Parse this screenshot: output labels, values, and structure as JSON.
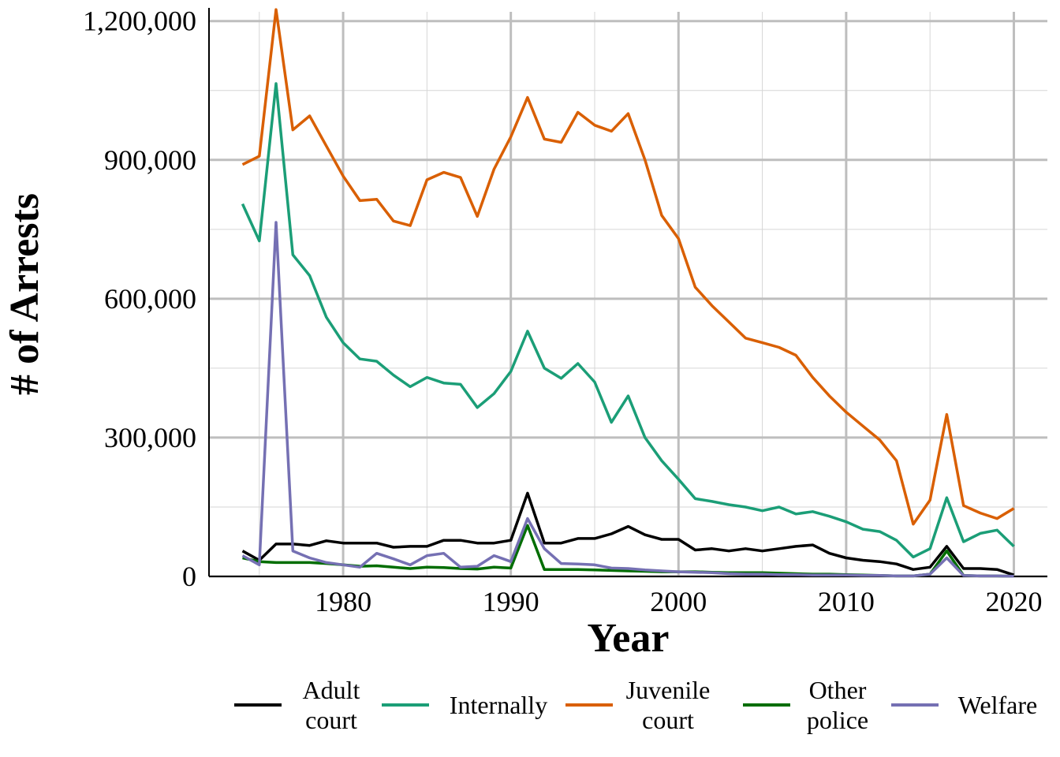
{
  "chart_data": {
    "type": "line",
    "xlabel": "Year",
    "ylabel": "# of Arrests",
    "xlim": [
      1972,
      2022
    ],
    "ylim": [
      0,
      1220000
    ],
    "x_ticks": [
      1980,
      1990,
      2000,
      2010,
      2020
    ],
    "x_tick_labels": [
      "1980",
      "1990",
      "2000",
      "2010",
      "2020"
    ],
    "y_ticks": [
      0,
      300000,
      600000,
      900000,
      1200000
    ],
    "y_tick_labels": [
      "0",
      "300,000",
      "600,000",
      "900,000",
      "1,200,000"
    ],
    "grid": true,
    "legend_position": "bottom",
    "x": [
      1974,
      1975,
      1976,
      1977,
      1978,
      1979,
      1980,
      1981,
      1982,
      1983,
      1984,
      1985,
      1986,
      1987,
      1988,
      1989,
      1990,
      1991,
      1992,
      1993,
      1994,
      1995,
      1996,
      1997,
      1998,
      1999,
      2000,
      2001,
      2002,
      2003,
      2004,
      2005,
      2006,
      2007,
      2008,
      2009,
      2010,
      2011,
      2012,
      2013,
      2014,
      2015,
      2016,
      2017,
      2018,
      2019,
      2020
    ],
    "series": [
      {
        "name": "Adult court",
        "legend_lines": [
          "Adult",
          "court"
        ],
        "color": "#000000",
        "values": [
          55000,
          35000,
          70000,
          70000,
          67000,
          77000,
          72000,
          72000,
          72000,
          63000,
          65000,
          65000,
          78000,
          78000,
          72000,
          72000,
          78000,
          180000,
          72000,
          72000,
          82000,
          82000,
          92000,
          108000,
          90000,
          80000,
          80000,
          57000,
          60000,
          55000,
          60000,
          55000,
          60000,
          65000,
          68000,
          50000,
          40000,
          35000,
          32000,
          27000,
          15000,
          20000,
          65000,
          17000,
          17000,
          15000,
          3000
        ]
      },
      {
        "name": "Internally",
        "legend_lines": [
          "Internally"
        ],
        "color": "#1b9e77",
        "values": [
          805000,
          725000,
          1065000,
          695000,
          650000,
          560000,
          505000,
          470000,
          465000,
          435000,
          410000,
          430000,
          418000,
          415000,
          365000,
          395000,
          443000,
          530000,
          450000,
          428000,
          460000,
          420000,
          333000,
          390000,
          300000,
          250000,
          210000,
          168000,
          162000,
          155000,
          150000,
          142000,
          150000,
          135000,
          140000,
          130000,
          118000,
          102000,
          97000,
          78000,
          42000,
          60000,
          170000,
          75000,
          93000,
          100000,
          65000
        ]
      },
      {
        "name": "Juvenile court",
        "legend_lines": [
          "Juvenile",
          "court"
        ],
        "color": "#d95f02",
        "values": [
          890000,
          908000,
          1225000,
          965000,
          995000,
          930000,
          865000,
          812000,
          815000,
          768000,
          758000,
          857000,
          873000,
          862000,
          778000,
          880000,
          950000,
          1035000,
          945000,
          938000,
          1003000,
          975000,
          962000,
          1000000,
          900000,
          780000,
          730000,
          625000,
          585000,
          550000,
          515000,
          505000,
          495000,
          478000,
          430000,
          390000,
          355000,
          325000,
          295000,
          250000,
          113000,
          165000,
          350000,
          153000,
          137000,
          125000,
          147000
        ]
      },
      {
        "name": "Other police",
        "legend_lines": [
          "Other",
          "police"
        ],
        "color": "#006d00",
        "values": [
          40000,
          32000,
          30000,
          30000,
          30000,
          28000,
          25000,
          22000,
          23000,
          20000,
          17000,
          20000,
          19000,
          17000,
          16000,
          20000,
          18000,
          110000,
          15000,
          15000,
          15000,
          14000,
          13000,
          12000,
          11000,
          10000,
          10000,
          10000,
          9000,
          8000,
          8000,
          8000,
          7000,
          6000,
          5000,
          5000,
          4000,
          3000,
          2000,
          1000,
          1000,
          5000,
          55000,
          2000,
          1000,
          1000,
          500
        ]
      },
      {
        "name": "Welfare",
        "legend_lines": [
          "Welfare"
        ],
        "color": "#7570b3",
        "values": [
          45000,
          25000,
          765000,
          55000,
          40000,
          30000,
          25000,
          20000,
          50000,
          38000,
          25000,
          45000,
          50000,
          20000,
          22000,
          45000,
          32000,
          125000,
          60000,
          28000,
          27000,
          25000,
          18000,
          17000,
          14000,
          12000,
          10000,
          9000,
          8000,
          6000,
          5000,
          5000,
          4000,
          4000,
          3000,
          3000,
          3000,
          2000,
          2000,
          1000,
          1000,
          5000,
          40000,
          2000,
          1000,
          1000,
          500
        ]
      }
    ]
  }
}
